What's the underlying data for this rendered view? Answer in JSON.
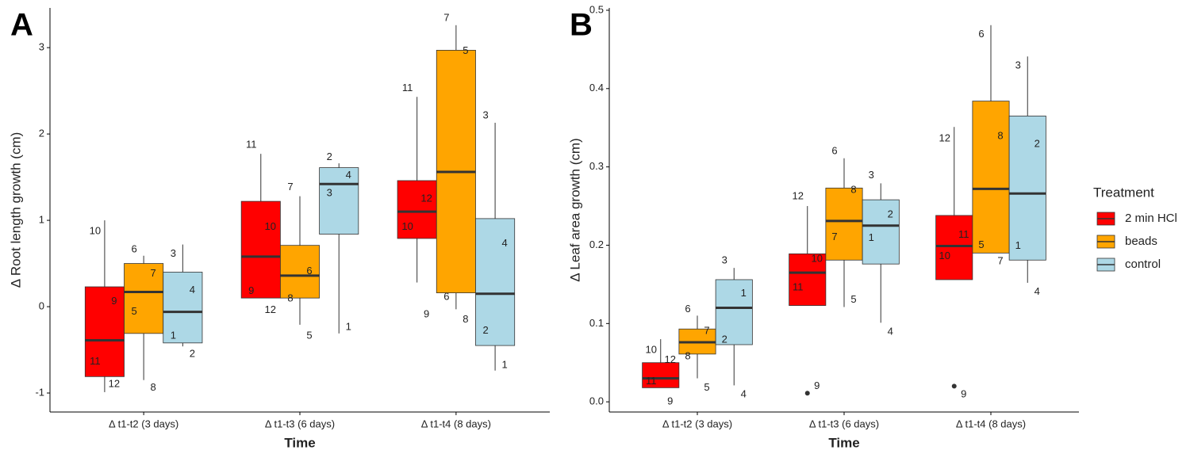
{
  "chart_data": [
    {
      "type": "boxplot",
      "panel_label": "A",
      "ylabel": "Δ Root length growth (cm)",
      "xlabel": "Time",
      "categories": [
        "Δ t1-t2 (3 days)",
        "Δ t1-t3 (6 days)",
        "Δ t1-t4 (8 days)"
      ],
      "ylim": [
        -1.22,
        3.46
      ],
      "yticks": [
        -1,
        0,
        1,
        2,
        3
      ],
      "series": [
        {
          "color": "#ff0000",
          "boxes": [
            {
              "whislo": -0.99,
              "q1": -0.81,
              "med": -0.39,
              "q3": 0.23,
              "whishi": 1.0,
              "outliers": [],
              "points": [
                {
                  "label": "10",
                  "value": 0.87
                },
                {
                  "label": "9",
                  "value": 0.06
                },
                {
                  "label": "11",
                  "value": -0.64
                },
                {
                  "label": "12",
                  "value": -0.9
                }
              ]
            },
            {
              "whislo": 0.1,
              "q1": 0.1,
              "med": 0.58,
              "q3": 1.22,
              "whishi": 1.77,
              "outliers": [],
              "points": [
                {
                  "label": "11",
                  "value": 1.87
                },
                {
                  "label": "10",
                  "value": 0.92
                },
                {
                  "label": "9",
                  "value": 0.18
                },
                {
                  "label": "12",
                  "value": -0.04
                }
              ]
            },
            {
              "whislo": 0.28,
              "q1": 0.79,
              "med": 1.1,
              "q3": 1.46,
              "whishi": 2.43,
              "outliers": [],
              "points": [
                {
                  "label": "11",
                  "value": 2.53
                },
                {
                  "label": "12",
                  "value": 1.25
                },
                {
                  "label": "10",
                  "value": 0.92
                },
                {
                  "label": "9",
                  "value": -0.09
                }
              ]
            }
          ]
        },
        {
          "color": "#ffa500",
          "boxes": [
            {
              "whislo": -0.85,
              "q1": -0.31,
              "med": 0.17,
              "q3": 0.5,
              "whishi": 0.59,
              "outliers": [],
              "points": [
                {
                  "label": "6",
                  "value": 0.66
                },
                {
                  "label": "7",
                  "value": 0.38
                },
                {
                  "label": "5",
                  "value": -0.06
                },
                {
                  "label": "8",
                  "value": -0.94
                }
              ]
            },
            {
              "whislo": -0.21,
              "q1": 0.1,
              "med": 0.36,
              "q3": 0.71,
              "whishi": 1.28,
              "outliers": [],
              "points": [
                {
                  "label": "7",
                  "value": 1.38
                },
                {
                  "label": "6",
                  "value": 0.41
                },
                {
                  "label": "8",
                  "value": 0.09
                },
                {
                  "label": "5",
                  "value": -0.34
                }
              ]
            },
            {
              "whislo": -0.03,
              "q1": 0.16,
              "med": 1.56,
              "q3": 2.97,
              "whishi": 3.26,
              "outliers": [],
              "points": [
                {
                  "label": "7",
                  "value": 3.34
                },
                {
                  "label": "5",
                  "value": 2.96
                },
                {
                  "label": "6",
                  "value": 0.11
                },
                {
                  "label": "8",
                  "value": -0.15
                }
              ]
            }
          ]
        },
        {
          "color": "#add8e6",
          "boxes": [
            {
              "whislo": -0.46,
              "q1": -0.42,
              "med": -0.06,
              "q3": 0.4,
              "whishi": 0.72,
              "outliers": [],
              "points": [
                {
                  "label": "3",
                  "value": 0.61
                },
                {
                  "label": "4",
                  "value": 0.19
                },
                {
                  "label": "1",
                  "value": -0.34
                },
                {
                  "label": "2",
                  "value": -0.55
                }
              ]
            },
            {
              "whislo": -0.31,
              "q1": 0.84,
              "med": 1.42,
              "q3": 1.61,
              "whishi": 1.66,
              "outliers": [],
              "points": [
                {
                  "label": "2",
                  "value": 1.73
                },
                {
                  "label": "4",
                  "value": 1.52
                },
                {
                  "label": "3",
                  "value": 1.31
                },
                {
                  "label": "1",
                  "value": -0.24
                }
              ]
            },
            {
              "whislo": -0.74,
              "q1": -0.45,
              "med": 0.15,
              "q3": 1.02,
              "whishi": 2.13,
              "outliers": [],
              "points": [
                {
                  "label": "3",
                  "value": 2.21
                },
                {
                  "label": "4",
                  "value": 0.73
                },
                {
                  "label": "2",
                  "value": -0.28
                },
                {
                  "label": "1",
                  "value": -0.68
                }
              ]
            }
          ]
        }
      ]
    },
    {
      "type": "boxplot",
      "panel_label": "B",
      "ylabel": "Δ Leaf area growth (cm)",
      "xlabel": "Time",
      "categories": [
        "Δ t1-t2 (3 days)",
        "Δ t1-t3 (6 days)",
        "Δ t1-t4 (8 days)"
      ],
      "ylim": [
        -0.013,
        0.503
      ],
      "yticks": [
        {
          "value": 0,
          "label": "0.0"
        },
        0.1,
        0.2,
        0.3,
        0.4,
        0.5
      ],
      "series": [
        {
          "color": "#ff0000",
          "boxes": [
            {
              "whislo": 0.018,
              "q1": 0.018,
              "med": 0.03,
              "q3": 0.05,
              "whishi": 0.08,
              "outliers": [],
              "points": [
                {
                  "label": "10",
                  "value": 0.066
                },
                {
                  "label": "12",
                  "value": 0.053
                },
                {
                  "label": "11",
                  "value": 0.026
                },
                {
                  "label": "9",
                  "value": 0.0
                }
              ]
            },
            {
              "whislo": 0.123,
              "q1": 0.123,
              "med": 0.165,
              "q3": 0.189,
              "whishi": 0.25,
              "outliers": [
                0.011
              ],
              "points": [
                {
                  "label": "12",
                  "value": 0.262
                },
                {
                  "label": "10",
                  "value": 0.182
                },
                {
                  "label": "11",
                  "value": 0.146
                },
                {
                  "label": "9",
                  "value": 0.02
                }
              ]
            },
            {
              "whislo": 0.156,
              "q1": 0.156,
              "med": 0.199,
              "q3": 0.238,
              "whishi": 0.351,
              "outliers": [
                0.02
              ],
              "points": [
                {
                  "label": "12",
                  "value": 0.336
                },
                {
                  "label": "11",
                  "value": 0.213
                },
                {
                  "label": "10",
                  "value": 0.186
                },
                {
                  "label": "9",
                  "value": 0.009
                }
              ]
            }
          ]
        },
        {
          "color": "#ffa500",
          "boxes": [
            {
              "whislo": 0.03,
              "q1": 0.061,
              "med": 0.076,
              "q3": 0.093,
              "whishi": 0.11,
              "outliers": [],
              "points": [
                {
                  "label": "6",
                  "value": 0.118
                },
                {
                  "label": "7",
                  "value": 0.09
                },
                {
                  "label": "8",
                  "value": 0.058
                },
                {
                  "label": "5",
                  "value": 0.018
                }
              ]
            },
            {
              "whislo": 0.121,
              "q1": 0.181,
              "med": 0.231,
              "q3": 0.273,
              "whishi": 0.311,
              "outliers": [],
              "points": [
                {
                  "label": "6",
                  "value": 0.32
                },
                {
                  "label": "8",
                  "value": 0.27
                },
                {
                  "label": "7",
                  "value": 0.21
                },
                {
                  "label": "5",
                  "value": 0.13
                }
              ]
            },
            {
              "whislo": 0.19,
              "q1": 0.19,
              "med": 0.272,
              "q3": 0.384,
              "whishi": 0.481,
              "outliers": [],
              "points": [
                {
                  "label": "6",
                  "value": 0.469
                },
                {
                  "label": "8",
                  "value": 0.339
                },
                {
                  "label": "5",
                  "value": 0.2
                },
                {
                  "label": "7",
                  "value": 0.179
                }
              ]
            }
          ]
        },
        {
          "color": "#add8e6",
          "boxes": [
            {
              "whislo": 0.021,
              "q1": 0.073,
              "med": 0.12,
              "q3": 0.156,
              "whishi": 0.171,
              "outliers": [],
              "points": [
                {
                  "label": "3",
                  "value": 0.18
                },
                {
                  "label": "1",
                  "value": 0.138
                },
                {
                  "label": "2",
                  "value": 0.079
                },
                {
                  "label": "4",
                  "value": 0.009
                }
              ]
            },
            {
              "whislo": 0.101,
              "q1": 0.176,
              "med": 0.225,
              "q3": 0.258,
              "whishi": 0.279,
              "outliers": [],
              "points": [
                {
                  "label": "3",
                  "value": 0.289
                },
                {
                  "label": "2",
                  "value": 0.239
                },
                {
                  "label": "1",
                  "value": 0.209
                },
                {
                  "label": "4",
                  "value": 0.089
                }
              ]
            },
            {
              "whislo": 0.152,
              "q1": 0.181,
              "med": 0.266,
              "q3": 0.365,
              "whishi": 0.441,
              "outliers": [],
              "points": [
                {
                  "label": "3",
                  "value": 0.429
                },
                {
                  "label": "2",
                  "value": 0.329
                },
                {
                  "label": "1",
                  "value": 0.199
                },
                {
                  "label": "4",
                  "value": 0.14
                }
              ]
            }
          ]
        }
      ]
    }
  ],
  "legend": {
    "title": "Treatment",
    "entries": [
      {
        "name": "2 min HCl",
        "color": "#ff0000"
      },
      {
        "name": "beads",
        "color": "#ffa500"
      },
      {
        "name": "control",
        "color": "#add8e6"
      }
    ]
  }
}
